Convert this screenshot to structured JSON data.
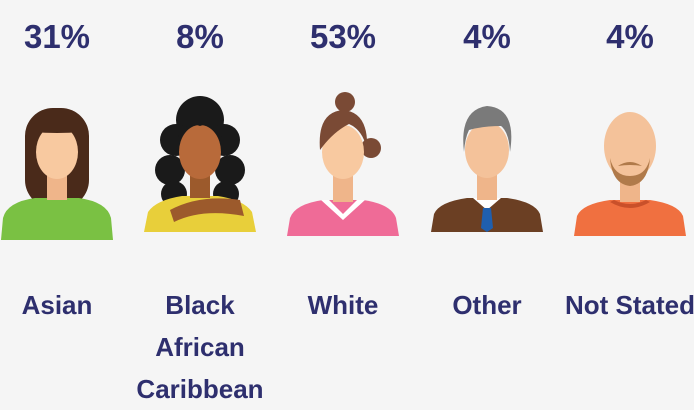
{
  "items": [
    {
      "value": "31%",
      "label": "Asian"
    },
    {
      "value": "8%",
      "label": "Black African Caribbean"
    },
    {
      "value": "53%",
      "label": "White"
    },
    {
      "value": "4%",
      "label": "Other"
    },
    {
      "value": "4%",
      "label": "Not Stated"
    }
  ]
}
